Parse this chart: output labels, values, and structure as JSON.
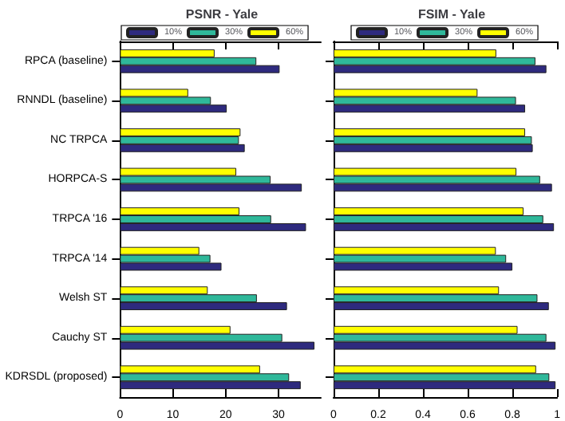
{
  "chart_data": [
    {
      "type": "bar",
      "orientation": "horizontal",
      "title": "PSNR - Yale",
      "categories": [
        "RPCA (baseline)",
        "RNNDL (baseline)",
        "NC TRPCA",
        "HORPCA-S",
        "TRPCA '16",
        "TRPCA '14",
        "Welsh ST",
        "Cauchy ST",
        "KDRSDL (proposed)"
      ],
      "series": [
        {
          "name": "10%",
          "color": "#2e2a7e",
          "values": [
            30.2,
            20.2,
            23.6,
            34.4,
            35.2,
            19.2,
            31.6,
            36.8,
            34.2
          ]
        },
        {
          "name": "30%",
          "color": "#2fb89a",
          "values": [
            25.8,
            17.2,
            22.5,
            28.5,
            28.6,
            17.1,
            25.9,
            30.7,
            32.0
          ]
        },
        {
          "name": "60%",
          "color": "#ffff00",
          "values": [
            17.9,
            12.9,
            22.8,
            22.0,
            22.6,
            15.0,
            16.6,
            20.9,
            26.5
          ]
        }
      ],
      "xlim": [
        0,
        38
      ],
      "xticks": [
        0,
        10,
        20,
        30
      ],
      "legend": "top",
      "grid": false
    },
    {
      "type": "bar",
      "orientation": "horizontal",
      "title": "FSIM - Yale",
      "categories": [
        null,
        null,
        null,
        null,
        null,
        null,
        null,
        null,
        null
      ],
      "series": [
        {
          "name": "10%",
          "color": "#2e2a7e",
          "values": [
            0.952,
            0.857,
            0.891,
            0.977,
            0.986,
            0.8,
            0.963,
            0.993,
            0.993
          ]
        },
        {
          "name": "30%",
          "color": "#2fb89a",
          "values": [
            0.903,
            0.816,
            0.887,
            0.924,
            0.938,
            0.772,
            0.912,
            0.952,
            0.965
          ]
        },
        {
          "name": "60%",
          "color": "#ffff00",
          "values": [
            0.728,
            0.644,
            0.857,
            0.818,
            0.85,
            0.726,
            0.74,
            0.823,
            0.906
          ]
        }
      ],
      "xlim": [
        0,
        1
      ],
      "xticks": [
        0,
        0.2,
        0.4,
        0.6,
        0.8,
        1
      ],
      "legend": "top",
      "grid": false,
      "tick_labels": "x"
    }
  ]
}
